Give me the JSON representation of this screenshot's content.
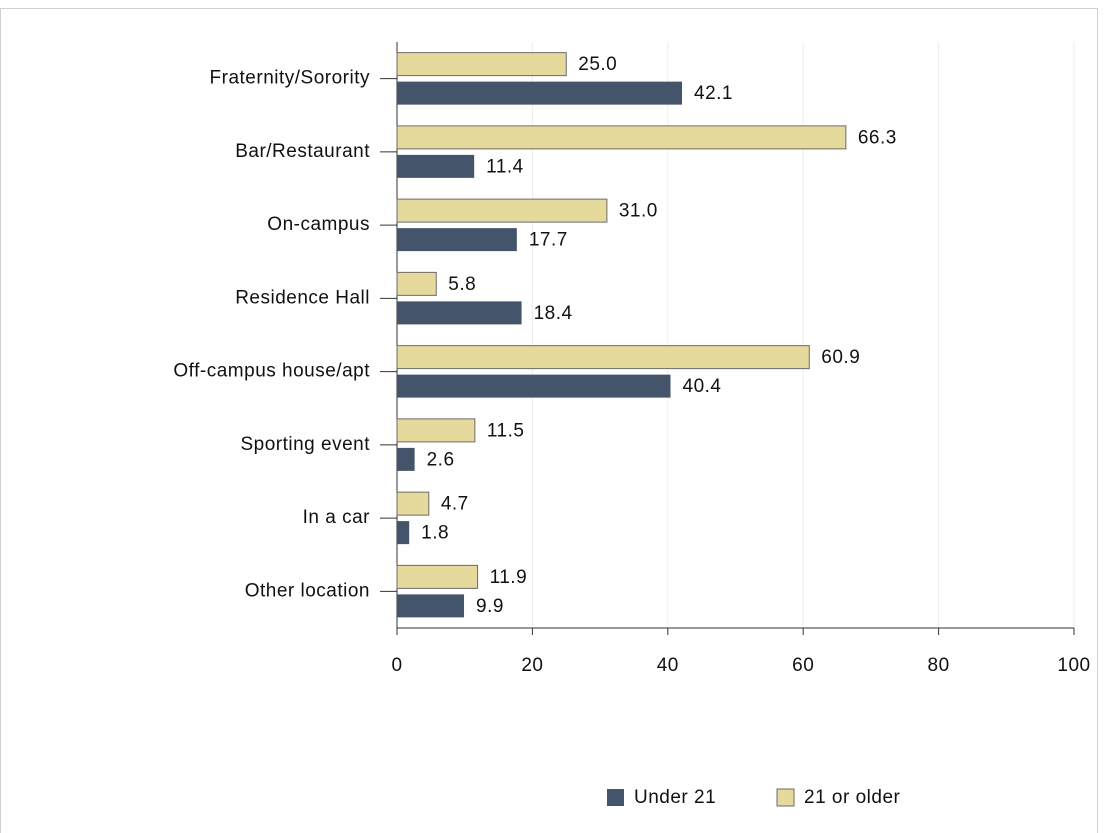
{
  "chart_data": {
    "type": "bar",
    "orientation": "horizontal",
    "categories": [
      "Fraternity/Sorority",
      "Bar/Restaurant",
      "On-campus",
      "Residence Hall",
      "Off-campus house/apt",
      "Sporting event",
      "In a car",
      "Other location"
    ],
    "series": [
      {
        "name": "Under 21",
        "color": "#44546a",
        "values": [
          42.1,
          11.4,
          17.7,
          18.4,
          40.4,
          2.6,
          1.8,
          9.9
        ],
        "value_labels": [
          "42.1",
          "11.4",
          "17.7",
          "18.4",
          "40.4",
          "2.6",
          "1.8",
          "9.9"
        ]
      },
      {
        "name": "21 or older",
        "color": "#e6d99c",
        "values": [
          25,
          66.3,
          31,
          5.8,
          60.9,
          11.5,
          4.7,
          11.9
        ],
        "value_labels": [
          "25.0",
          "66.3",
          "31.0",
          "5.8",
          "60.9",
          "11.5",
          "4.7",
          "11.9"
        ]
      }
    ],
    "xlim": [
      0,
      100
    ],
    "xticks": [
      0,
      20,
      40,
      60,
      80,
      100
    ],
    "grid": true,
    "legend": "bottom"
  }
}
